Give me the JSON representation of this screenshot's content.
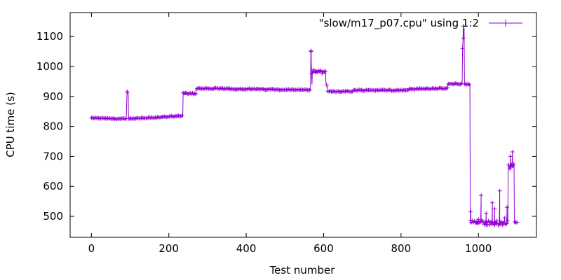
{
  "chart_data": {
    "type": "line",
    "title": "",
    "xlabel": "Test number",
    "ylabel": "CPU time (s)",
    "xlim": [
      -55,
      1150
    ],
    "ylim": [
      430,
      1180
    ],
    "x_ticks": [
      0,
      200,
      400,
      600,
      800,
      1000
    ],
    "y_ticks": [
      500,
      600,
      700,
      800,
      900,
      1000,
      1100
    ],
    "grid": false,
    "legend_position": "top-right",
    "series": [
      {
        "name": "\"slow/m17_p07.cpu\" using 1:2",
        "color": "#9400d3",
        "marker": "plus",
        "segments": [
          {
            "x0": 0,
            "x1": 90,
            "y0": 828,
            "y1": 825,
            "noise": 2
          },
          {
            "x0": 92,
            "x1": 95,
            "y0": 915,
            "y1": 915,
            "noise": 0
          },
          {
            "x0": 96,
            "x1": 180,
            "y0": 826,
            "y1": 830,
            "noise": 2
          },
          {
            "x0": 181,
            "x1": 236,
            "y0": 832,
            "y1": 835,
            "noise": 2
          },
          {
            "x0": 237,
            "x1": 270,
            "y0": 910,
            "y1": 910,
            "noise": 3
          },
          {
            "x0": 271,
            "x1": 566,
            "y0": 927,
            "y1": 922,
            "noise": 2
          },
          {
            "x0": 567,
            "x1": 570,
            "y0": 1050,
            "y1": 940,
            "noise": 0
          },
          {
            "x0": 571,
            "x1": 605,
            "y0": 985,
            "y1": 980,
            "noise": 5
          },
          {
            "x0": 606,
            "x1": 610,
            "y0": 945,
            "y1": 930,
            "noise": 0
          },
          {
            "x0": 611,
            "x1": 675,
            "y0": 917,
            "y1": 917,
            "noise": 2
          },
          {
            "x0": 676,
            "x1": 820,
            "y0": 921,
            "y1": 921,
            "noise": 2
          },
          {
            "x0": 821,
            "x1": 920,
            "y0": 925,
            "y1": 927,
            "noise": 2
          },
          {
            "x0": 921,
            "x1": 958,
            "y0": 942,
            "y1": 942,
            "noise": 2
          },
          {
            "x0": 959,
            "x1": 963,
            "y0": 1060,
            "y1": 1130,
            "noise": 0
          },
          {
            "x0": 964,
            "x1": 978,
            "y0": 942,
            "y1": 940,
            "noise": 2
          },
          {
            "x0": 979,
            "x1": 1076,
            "y0": 480,
            "y1": 478,
            "noise": 8
          },
          {
            "x0": 1077,
            "x1": 1092,
            "y0": 660,
            "y1": 675,
            "noise": 12
          },
          {
            "x0": 1093,
            "x1": 1100,
            "y0": 480,
            "y1": 478,
            "noise": 3
          }
        ],
        "spikes": [
          {
            "x": 92,
            "y": 915
          },
          {
            "x": 568,
            "y": 1052
          },
          {
            "x": 961,
            "y": 1135
          },
          {
            "x": 980,
            "y": 515
          },
          {
            "x": 1000,
            "y": 490
          },
          {
            "x": 1007,
            "y": 570
          },
          {
            "x": 1020,
            "y": 510
          },
          {
            "x": 1036,
            "y": 545
          },
          {
            "x": 1042,
            "y": 525
          },
          {
            "x": 1055,
            "y": 585
          },
          {
            "x": 1068,
            "y": 495
          },
          {
            "x": 1074,
            "y": 530
          },
          {
            "x": 1088,
            "y": 715
          },
          {
            "x": 1083,
            "y": 700
          }
        ]
      }
    ]
  }
}
